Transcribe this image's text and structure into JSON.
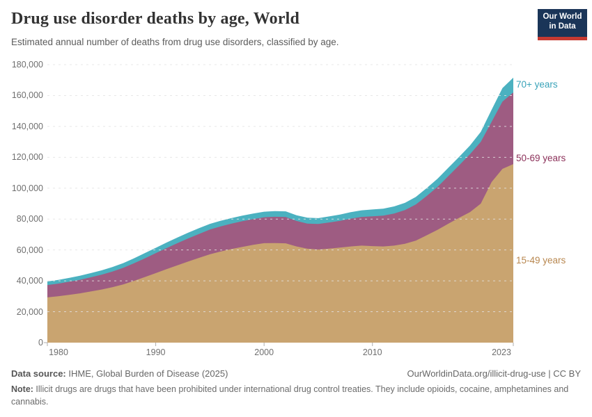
{
  "header": {
    "title": "Drug use disorder deaths by age, World",
    "subtitle": "Estimated annual number of deaths from drug use disorders, classified by age.",
    "logo_line1": "Our World",
    "logo_line2": "in Data"
  },
  "chart_data": {
    "type": "area",
    "stacked": true,
    "title": "Drug use disorder deaths by age, World",
    "xlabel": "",
    "ylabel": "",
    "xlim": [
      1980,
      2023
    ],
    "ylim": [
      0,
      180000
    ],
    "grid": "horizontal-dashed",
    "legend_position": "right-of-area-labels",
    "x": [
      1980,
      1981,
      1982,
      1983,
      1984,
      1985,
      1986,
      1987,
      1988,
      1989,
      1990,
      1991,
      1992,
      1993,
      1994,
      1995,
      1996,
      1997,
      1998,
      1999,
      2000,
      2001,
      2002,
      2003,
      2004,
      2005,
      2006,
      2007,
      2008,
      2009,
      2010,
      2011,
      2012,
      2013,
      2014,
      2015,
      2016,
      2017,
      2018,
      2019,
      2020,
      2021,
      2022,
      2023
    ],
    "series": [
      {
        "name": "15-49 years",
        "color": "#C9A470",
        "label_color": "#B8874F",
        "values": [
          29300,
          30000,
          30900,
          31900,
          33100,
          34400,
          35900,
          37700,
          40000,
          42500,
          45000,
          47600,
          50100,
          52500,
          54900,
          57200,
          59000,
          60600,
          62000,
          63300,
          64400,
          64500,
          64300,
          62300,
          60800,
          60300,
          60900,
          61500,
          62300,
          62800,
          62500,
          62300,
          62800,
          64000,
          66000,
          69500,
          73000,
          77000,
          80800,
          84500,
          90000,
          104000,
          112500,
          115600
        ]
      },
      {
        "name": "50-69 years",
        "color": "#9E5C82",
        "label_color": "#8B3059",
        "values": [
          8000,
          8200,
          8500,
          8800,
          9200,
          9600,
          10100,
          10700,
          11400,
          12100,
          12900,
          13600,
          14300,
          15000,
          15500,
          16000,
          16300,
          16500,
          16600,
          16700,
          16800,
          17000,
          17000,
          16500,
          16300,
          16500,
          16900,
          17400,
          18000,
          18600,
          19300,
          19900,
          20800,
          21800,
          23400,
          25400,
          27800,
          30800,
          34000,
          37500,
          40000,
          39000,
          43500,
          46400
        ]
      },
      {
        "name": "70+ years",
        "color": "#4BB1C0",
        "label_color": "#3AA3B9",
        "values": [
          2300,
          2400,
          2500,
          2600,
          2700,
          2800,
          2950,
          3100,
          3250,
          3400,
          3500,
          3600,
          3650,
          3700,
          3700,
          3700,
          3650,
          3600,
          3600,
          3600,
          3600,
          3650,
          3700,
          3700,
          3750,
          3800,
          3900,
          4000,
          4150,
          4300,
          4400,
          4500,
          4600,
          4700,
          4900,
          5100,
          5250,
          5400,
          5500,
          5600,
          6500,
          7800,
          8800,
          9600
        ]
      }
    ],
    "yticks": [
      0,
      20000,
      40000,
      60000,
      80000,
      100000,
      120000,
      140000,
      160000,
      180000
    ],
    "ytick_labels": [
      "0",
      "20,000",
      "40,000",
      "60,000",
      "80,000",
      "100,000",
      "120,000",
      "140,000",
      "160,000",
      "180,000"
    ],
    "xticks": [
      1980,
      1990,
      2000,
      2010,
      2023
    ],
    "xtick_labels": [
      "1980",
      "1990",
      "2000",
      "2010",
      "2023"
    ]
  },
  "footer": {
    "datasource_label": "Data source:",
    "datasource_value": " IHME, Global Burden of Disease (2025)",
    "link": "OurWorldinData.org/illicit-drug-use | CC BY",
    "note_label": "Note:",
    "note_value": " Illicit drugs are drugs that have been prohibited under international drug control treaties. They include opioids, cocaine, amphetamines and cannabis."
  }
}
